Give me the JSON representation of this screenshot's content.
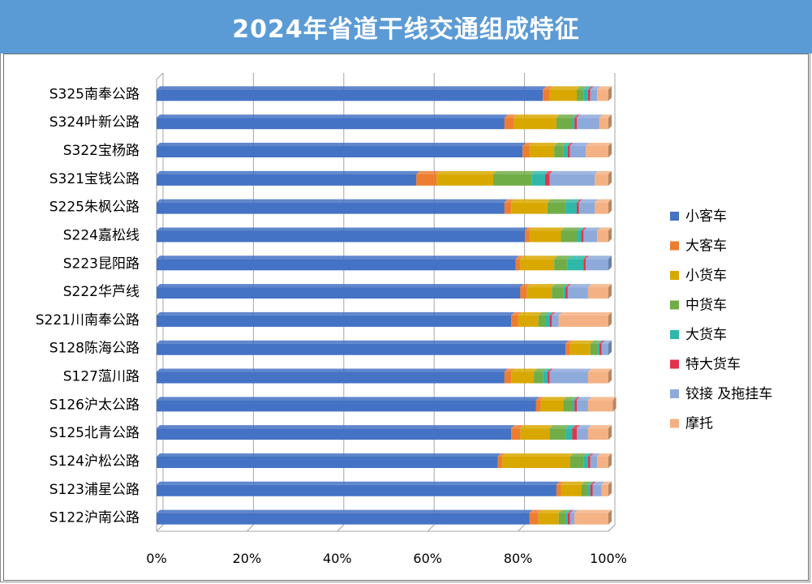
{
  "chart_data": {
    "type": "bar",
    "orientation": "horizontal",
    "stacked": "percent",
    "title": "2024年省道干线交通组成特征",
    "xlim": [
      0,
      100
    ],
    "x_ticks": [
      "0%",
      "20%",
      "40%",
      "60%",
      "80%",
      "100%"
    ],
    "grid": true,
    "legend_position": "right",
    "categories": [
      "S325南奉公路",
      "S324叶新公路",
      "S322宝杨路",
      "S321宝钱公路",
      "S225朱枫公路",
      "S224嘉松线",
      "S223昆阳路",
      "S222华芦线",
      "S221川南奉公路",
      "S128陈海公路",
      "S127蕰川路",
      "S126沪太公路",
      "S125北青公路",
      "S124沪松公路",
      "S123浦星公路",
      "S122沪南公路"
    ],
    "series": [
      {
        "name": "小客车",
        "color": "#4472c4",
        "values": [
          85.5,
          77,
          81,
          57.5,
          77,
          81.5,
          79.5,
          80.5,
          78.5,
          90.5,
          77,
          84,
          78.5,
          75.5,
          88.5,
          82.5
        ]
      },
      {
        "name": "大客车",
        "color": "#ed7d31",
        "values": [
          1.5,
          2,
          1.5,
          4.5,
          1.5,
          1,
          1,
          1.5,
          1.5,
          1,
          1.5,
          1,
          2,
          1,
          1,
          2
        ]
      },
      {
        "name": "小货车",
        "color": "#d9a800",
        "values": [
          6,
          9.5,
          5.5,
          12.5,
          8,
          7,
          7.5,
          5.5,
          4.5,
          4.5,
          5,
          5,
          6.5,
          15,
          4.5,
          4.5
        ]
      },
      {
        "name": "中货车",
        "color": "#70ad47",
        "values": [
          1.5,
          3.5,
          2,
          8.5,
          4,
          3.5,
          3,
          2.5,
          1.5,
          1.5,
          2,
          2,
          3.5,
          3,
          1.5,
          1.5
        ]
      },
      {
        "name": "大货车",
        "color": "#2eb8a8",
        "values": [
          1,
          0.5,
          1,
          3,
          2.5,
          1,
          3.5,
          0.5,
          1,
          0.5,
          1,
          0.5,
          1.5,
          1,
          0.5,
          0.5
        ]
      },
      {
        "name": "特大货车",
        "color": "#e0344c",
        "values": [
          0.5,
          0.5,
          0.5,
          1,
          0.5,
          0.5,
          0.5,
          0.5,
          0.5,
          0.5,
          0.5,
          0.5,
          1,
          0.5,
          0.5,
          0.5
        ]
      },
      {
        "name": "铰接 及拖挂车",
        "color": "#8eaadb",
        "values": [
          1.5,
          5,
          3.5,
          10,
          3.5,
          3,
          5,
          4.5,
          1.5,
          1.5,
          8.5,
          2.5,
          2.5,
          1.5,
          2,
          1
        ]
      },
      {
        "name": "摩托",
        "color": "#f4b183",
        "values": [
          2.5,
          2,
          5,
          3,
          3,
          2.5,
          0,
          4.5,
          11,
          0,
          4.5,
          5.5,
          4.5,
          2.5,
          1.5,
          7.5
        ]
      }
    ]
  }
}
